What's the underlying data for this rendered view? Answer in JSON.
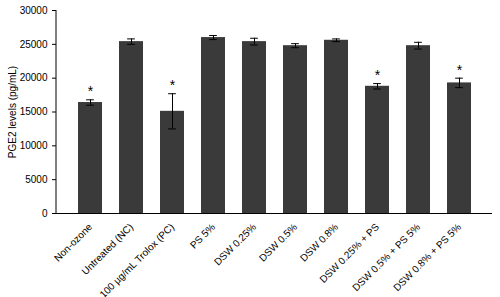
{
  "chart_data": {
    "type": "bar",
    "y_label": "PGE2 levels (pg/mL)",
    "categories": [
      "Non-ozone",
      "Untreated (NC)",
      "100 µg/mL Trolox (PC)",
      "PS 5%",
      "DSW 0.25%",
      "DSW 0.5%",
      "DSW 0.8%",
      "DSW 0.25% + PS",
      "DSW 0.5% + PS 5%",
      "DSW 0.8% + PS 5%"
    ],
    "values": [
      16400,
      25400,
      15100,
      26000,
      25400,
      24800,
      25600,
      18800,
      24800,
      19300
    ],
    "errors": [
      400,
      400,
      2600,
      300,
      500,
      300,
      200,
      400,
      500,
      700
    ],
    "color": "#3a3a3a",
    "ylim": [
      0,
      30000
    ],
    "yticks": [
      0,
      5000,
      10000,
      15000,
      20000,
      25000,
      30000
    ],
    "grid": false,
    "annotations": [
      {
        "category": "Non-ozone",
        "text": "*"
      },
      {
        "category": "100 µg/mL Trolox (PC)",
        "text": "*"
      },
      {
        "category": "DSW 0.25% + PS",
        "text": "*"
      },
      {
        "category": "DSW 0.8% + PS 5%",
        "text": "*"
      }
    ]
  }
}
